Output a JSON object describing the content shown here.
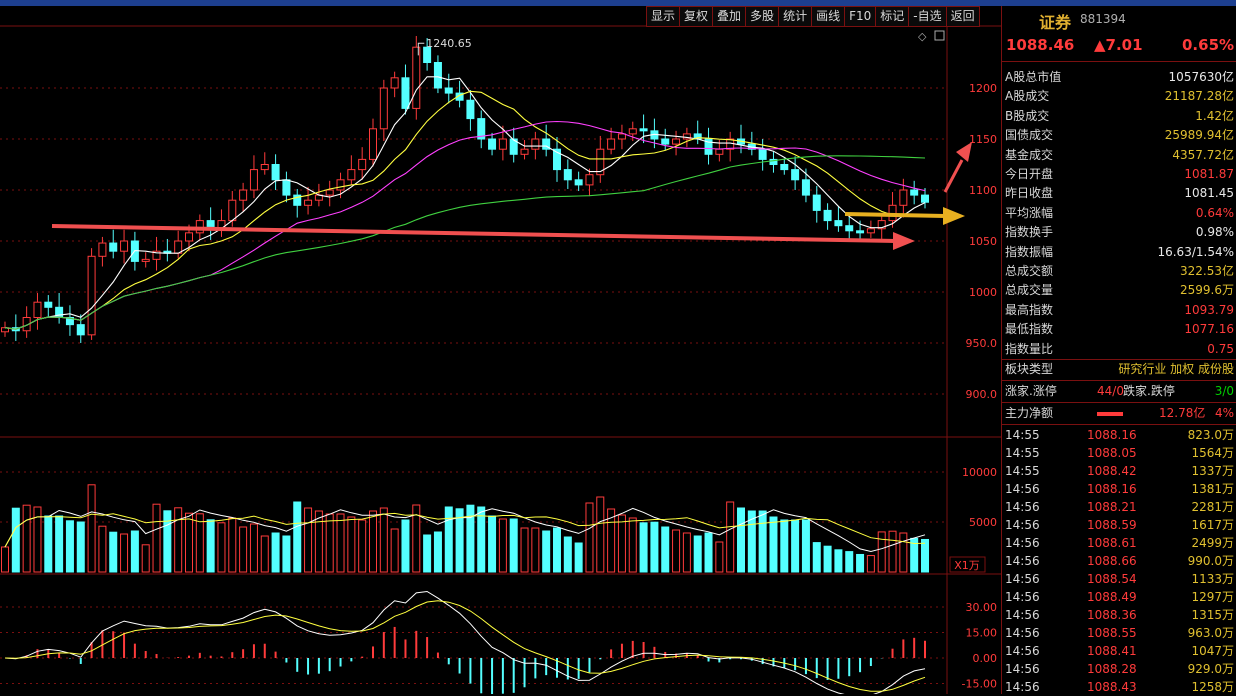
{
  "toolbar": {
    "items": [
      "显示",
      "复权",
      "叠加",
      "多股",
      "统计",
      "画线",
      "F10",
      "标记",
      "-自选",
      "返回"
    ]
  },
  "main": {
    "peak_label": "1240.65",
    "price_axis": [
      "1200",
      "1150",
      "1100",
      "1050",
      "1000",
      "950.0",
      "900.0"
    ],
    "volume_axis": [
      "10000",
      "5000"
    ],
    "volume_unit": "X1万",
    "macd_axis": [
      "30.00",
      "15.00",
      "0.00",
      "-15.00"
    ]
  },
  "quote": {
    "name": "证券",
    "code": "881394",
    "last": "1088.46",
    "change": "▲7.01",
    "pct": "0.65%"
  },
  "stats": [
    {
      "k": "A股总市值",
      "v": "1057630亿",
      "c": "wht"
    },
    {
      "k": "A股成交",
      "v": "21187.28亿",
      "c": "yel"
    },
    {
      "k": "B股成交",
      "v": "1.42亿",
      "c": "yel"
    },
    {
      "k": "国债成交",
      "v": "25989.94亿",
      "c": "yel"
    },
    {
      "k": "基金成交",
      "v": "4357.72亿",
      "c": "yel"
    },
    {
      "k": "今日开盘",
      "v": "1081.87",
      "c": "red"
    },
    {
      "k": "昨日收盘",
      "v": "1081.45",
      "c": "wht"
    },
    {
      "k": "平均涨幅",
      "v": "0.64%",
      "c": "red"
    },
    {
      "k": "指数换手",
      "v": "0.98%",
      "c": "wht"
    },
    {
      "k": "指数振幅",
      "v": "16.63/1.54%",
      "c": "wht"
    },
    {
      "k": "总成交额",
      "v": "322.53亿",
      "c": "yel"
    },
    {
      "k": "总成交量",
      "v": "2599.6万",
      "c": "yel"
    },
    {
      "k": "最高指数",
      "v": "1093.79",
      "c": "red"
    },
    {
      "k": "最低指数",
      "v": "1077.16",
      "c": "red"
    },
    {
      "k": "指数量比",
      "v": "0.75",
      "c": "red"
    }
  ],
  "board": {
    "type_label": "板块类型",
    "type_value": "研究行业 加权 成份股"
  },
  "updown": {
    "up_label": "涨家.涨停",
    "up_value": "44/0",
    "down_label": "跌家.跌停",
    "down_value": "3/0"
  },
  "mainflow": {
    "label": "主力净额",
    "value": "12.78亿",
    "pct": "4%"
  },
  "ticks": [
    {
      "t": "14:55",
      "p": "1088.16",
      "v": "823.0万"
    },
    {
      "t": "14:55",
      "p": "1088.05",
      "v": "1564万"
    },
    {
      "t": "14:55",
      "p": "1088.42",
      "v": "1337万"
    },
    {
      "t": "14:56",
      "p": "1088.16",
      "v": "1381万"
    },
    {
      "t": "14:56",
      "p": "1088.21",
      "v": "2281万"
    },
    {
      "t": "14:56",
      "p": "1088.59",
      "v": "1617万"
    },
    {
      "t": "14:56",
      "p": "1088.61",
      "v": "2499万"
    },
    {
      "t": "14:56",
      "p": "1088.66",
      "v": "990.0万"
    },
    {
      "t": "14:56",
      "p": "1088.54",
      "v": "1133万"
    },
    {
      "t": "14:56",
      "p": "1088.49",
      "v": "1297万"
    },
    {
      "t": "14:56",
      "p": "1088.36",
      "v": "1315万"
    },
    {
      "t": "14:56",
      "p": "1088.55",
      "v": "963.0万"
    },
    {
      "t": "14:56",
      "p": "1088.41",
      "v": "1047万"
    },
    {
      "t": "14:56",
      "p": "1088.28",
      "v": "929.0万"
    },
    {
      "t": "14:56",
      "p": "1088.43",
      "v": "1258万"
    }
  ],
  "chart_data": {
    "type": "line",
    "title": "",
    "series": [
      {
        "name": "",
        "values": [
          965,
          962,
          975,
          990,
          985,
          975,
          968,
          958,
          1035,
          1048,
          1040,
          1050,
          1030,
          1032,
          1040,
          1038,
          1050,
          1058,
          1070,
          1063,
          1070,
          1090,
          1100,
          1120,
          1125,
          1110,
          1095,
          1085,
          1090,
          1095,
          1100,
          1110,
          1120,
          1130,
          1160,
          1200,
          1210,
          1180,
          1240,
          1225,
          1200,
          1195,
          1188,
          1170,
          1150,
          1140,
          1150,
          1135,
          1140,
          1150,
          1140,
          1120,
          1110,
          1105,
          1115,
          1140,
          1150,
          1155,
          1160,
          1158,
          1150,
          1145,
          1150,
          1155,
          1150,
          1135,
          1140,
          1150,
          1145,
          1140,
          1130,
          1125,
          1120,
          1110,
          1095,
          1080,
          1070,
          1065,
          1060,
          1058,
          1062,
          1070,
          1085,
          1100,
          1095,
          1088
        ]
      }
    ]
  }
}
